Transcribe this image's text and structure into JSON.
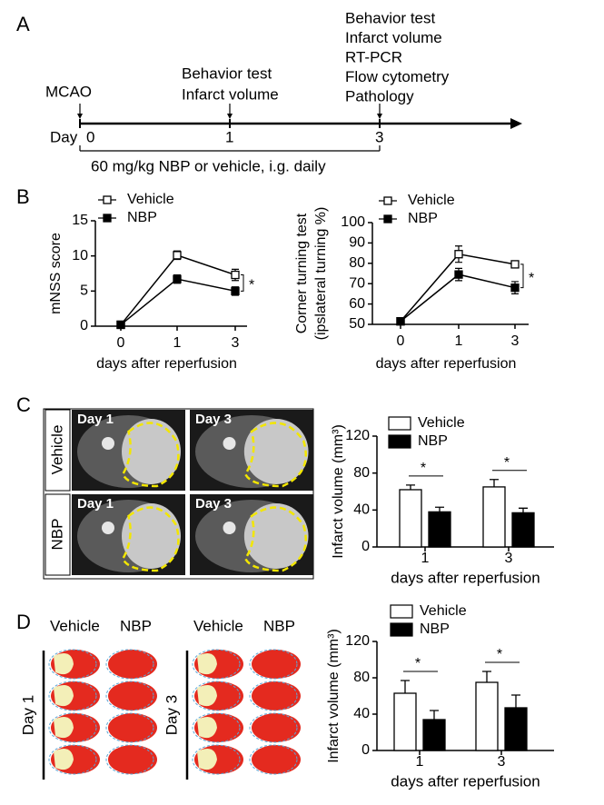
{
  "panels": [
    "A",
    "B",
    "C",
    "D"
  ],
  "timeline": {
    "start_label": "MCAO",
    "day_label": "Day",
    "days": [
      "0",
      "1",
      "3"
    ],
    "day1_labels": [
      "Behavior test",
      "Infarct volume"
    ],
    "day3_labels": [
      "Behavior test",
      "Infarct volume",
      "RT-PCR",
      "Flow cytometry",
      "Pathology"
    ],
    "treatment": "60 mg/kg NBP or vehicle, i.g. daily"
  },
  "mri": {
    "rows": [
      "Vehicle",
      "NBP"
    ],
    "columns": [
      "Day 1",
      "Day 3"
    ]
  },
  "ttc": {
    "groups": [
      "Vehicle",
      "NBP"
    ],
    "days": [
      "Day 1",
      "Day 3"
    ]
  },
  "chart_data": [
    {
      "type": "line",
      "ylabel": "mNSS score",
      "xlabel": "days after reperfusion",
      "categories": [
        "0",
        "1",
        "3"
      ],
      "ylim": [
        0,
        15
      ],
      "yticks": [
        0,
        5,
        10,
        15
      ],
      "annotation": "*",
      "series": [
        {
          "name": "Vehicle",
          "color": "#ffffff",
          "values": [
            0.2,
            10.1,
            7.3
          ],
          "errors": [
            0.2,
            0.6,
            0.8
          ]
        },
        {
          "name": "NBP",
          "color": "#000000",
          "values": [
            0.2,
            6.7,
            5.0
          ],
          "errors": [
            0.2,
            0.6,
            0.6
          ]
        }
      ]
    },
    {
      "type": "line",
      "ylabel": [
        "Corner turning test",
        "(ipslateral turning %)"
      ],
      "xlabel": "days after reperfusion",
      "categories": [
        "0",
        "1",
        "3"
      ],
      "ylim": [
        50,
        100
      ],
      "yticks": [
        50,
        60,
        70,
        80,
        90,
        100
      ],
      "annotation": "*",
      "series": [
        {
          "name": "Vehicle",
          "color": "#ffffff",
          "values": [
            51.5,
            84.5,
            79.5
          ],
          "errors": [
            1,
            4,
            1.5
          ]
        },
        {
          "name": "NBP",
          "color": "#000000",
          "values": [
            51.5,
            74.5,
            68
          ],
          "errors": [
            1,
            3,
            3
          ]
        }
      ]
    },
    {
      "type": "bar",
      "ylabel": "Infarct volume (mm³)",
      "xlabel": "days after reperfusion",
      "categories": [
        "1",
        "3"
      ],
      "ylim": [
        0,
        120
      ],
      "yticks": [
        0,
        40,
        80,
        120
      ],
      "annotations": [
        "*",
        "*"
      ],
      "series": [
        {
          "name": "Vehicle",
          "color": "#ffffff",
          "values": [
            62,
            65
          ],
          "errors": [
            5,
            8
          ]
        },
        {
          "name": "NBP",
          "color": "#000000",
          "values": [
            38,
            37
          ],
          "errors": [
            5,
            5
          ]
        }
      ]
    },
    {
      "type": "bar",
      "ylabel": "Infarct volume (mm³)",
      "xlabel": "days after reperfusion",
      "categories": [
        "1",
        "3"
      ],
      "ylim": [
        0,
        120
      ],
      "yticks": [
        0,
        40,
        80,
        120
      ],
      "annotations": [
        "*",
        "*"
      ],
      "series": [
        {
          "name": "Vehicle",
          "color": "#ffffff",
          "values": [
            63,
            75
          ],
          "errors": [
            14,
            12
          ]
        },
        {
          "name": "NBP",
          "color": "#000000",
          "values": [
            34,
            47
          ],
          "errors": [
            10,
            14
          ]
        }
      ]
    }
  ]
}
